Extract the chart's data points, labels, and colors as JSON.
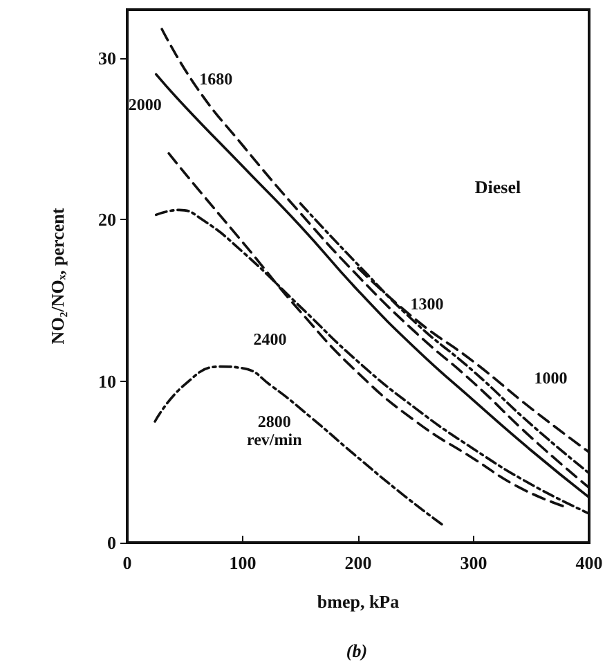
{
  "chart_data": {
    "type": "line",
    "xlabel": "bmep, kPa",
    "ylabel": "NO₂/NOₓ, percent",
    "xlim": [
      0,
      400
    ],
    "xticks": [
      0,
      100,
      200,
      300,
      400
    ],
    "ylim": [
      0,
      33
    ],
    "yticks": [
      0,
      10,
      20,
      30
    ],
    "grid": false,
    "marker": "none",
    "series": [
      {
        "name": "1000",
        "color": "#111111",
        "line_style": "dashed",
        "x": [
          200,
          250,
          300,
          350,
          400
        ],
        "values": [
          17,
          13.8,
          11.2,
          8.3,
          5.6
        ]
      },
      {
        "name": "1300",
        "color": "#111111",
        "line_style": "dotted",
        "x": [
          150,
          200,
          250,
          300,
          350,
          400
        ],
        "values": [
          21,
          17.2,
          13.6,
          10.6,
          7.3,
          4.3
        ]
      },
      {
        "name": "1680",
        "color": "#111111",
        "line_style": "dashed",
        "x": [
          30,
          60,
          100,
          150,
          200,
          250,
          300,
          350,
          400
        ],
        "values": [
          31.8,
          28.2,
          24.6,
          20.4,
          16.5,
          13,
          9.9,
          6.5,
          3.4
        ]
      },
      {
        "name": "2000",
        "color": "#111111",
        "line_style": "solid",
        "x": [
          25,
          50,
          100,
          150,
          200,
          250,
          300,
          350,
          400
        ],
        "values": [
          29,
          27,
          23.3,
          19.6,
          15.6,
          12,
          8.8,
          5.7,
          2.8
        ]
      },
      {
        "name": "2400",
        "color": "#111111",
        "line_style": "dashed",
        "x": [
          36,
          60,
          100,
          150,
          200,
          250,
          300,
          340,
          380
        ],
        "values": [
          24.1,
          22,
          18.6,
          14.3,
          10.5,
          7.5,
          5.2,
          3.4,
          2.2
        ]
      },
      {
        "color": "#111111",
        "line_style": "dotted",
        "x": [
          25,
          45,
          65,
          100,
          150,
          200,
          250,
          300,
          350,
          400
        ],
        "values": [
          20.3,
          20.6,
          20,
          18,
          14.6,
          11.2,
          8.3,
          5.8,
          3.6,
          1.8
        ]
      },
      {
        "name": "2800\nrev/min",
        "color": "#111111",
        "line_style": "dotted",
        "x": [
          24,
          50,
          81,
          100,
          125,
          160,
          196,
          240,
          275
        ],
        "values": [
          7.5,
          9.8,
          10.9,
          10.8,
          9.7,
          7.7,
          5.5,
          2.9,
          1.0
        ]
      }
    ],
    "annotations": [
      "Diesel",
      "(b)"
    ]
  }
}
